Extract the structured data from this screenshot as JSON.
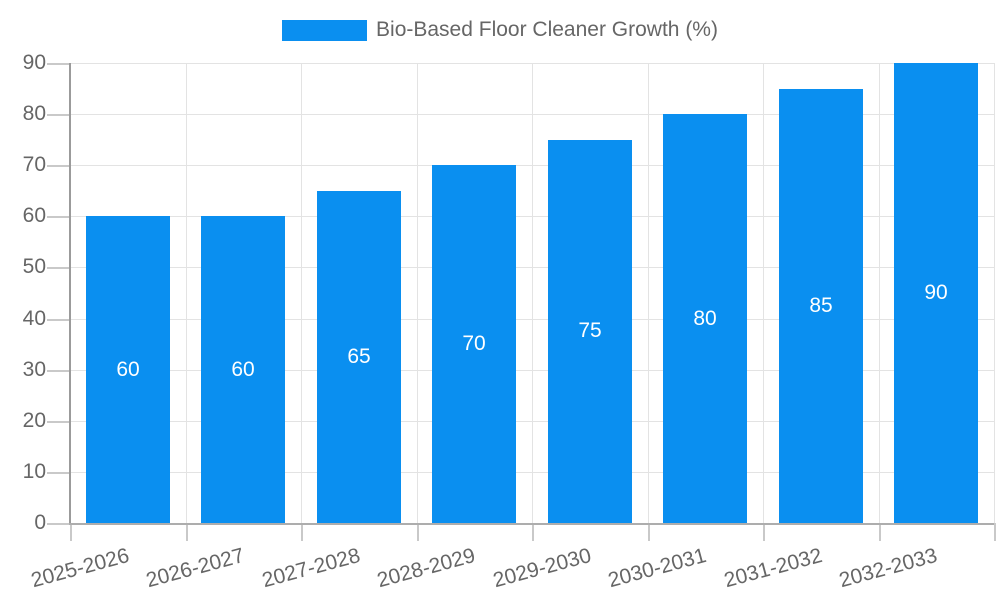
{
  "chart_data": {
    "type": "bar",
    "title": "Bio-Based Floor Cleaner Growth (%)",
    "series": [
      {
        "name": "Bio-Based Floor Cleaner Growth (%)",
        "values": [
          60,
          60,
          65,
          70,
          75,
          80,
          85,
          90
        ]
      }
    ],
    "categories": [
      "2025-2026",
      "2026-2027",
      "2027-2028",
      "2028-2029",
      "2029-2030",
      "2030-2031",
      "2031-2032",
      "2032-2033"
    ],
    "xlabel": "",
    "ylabel": "",
    "ylim": [
      0,
      90
    ],
    "ytick_step": 10,
    "ytick_labels": [
      "0",
      "10",
      "20",
      "30",
      "40",
      "50",
      "60",
      "70",
      "80",
      "90"
    ],
    "grid": true,
    "legend_position": "top",
    "value_labels_position": "center",
    "x_label_rotation_deg": -15,
    "bar_color": "#0a8ff0",
    "value_label_color": "#ffffff",
    "axis_text_color": "#666666",
    "background_color": "#ffffff"
  }
}
